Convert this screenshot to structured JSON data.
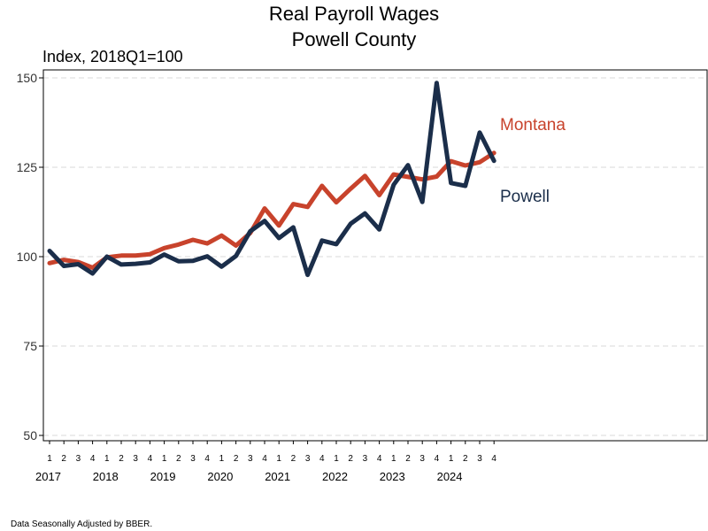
{
  "chart_data": {
    "type": "line",
    "title": [
      "Real Payroll Wages",
      "Powell County"
    ],
    "ylabel": "Index, 2018Q1=100",
    "ylim": [
      50,
      150
    ],
    "yticks": [
      50,
      75,
      100,
      125,
      150
    ],
    "grid": "horizontal-dashed",
    "quarters": [
      "1",
      "2",
      "3",
      "4",
      "1",
      "2",
      "3",
      "4",
      "1",
      "2",
      "3",
      "4",
      "1",
      "2",
      "3",
      "4",
      "1",
      "2",
      "3",
      "4",
      "1",
      "2",
      "3",
      "4",
      "1",
      "2",
      "3",
      "4",
      "1",
      "2",
      "3",
      "4"
    ],
    "years": [
      "2017",
      "2018",
      "2019",
      "2020",
      "2021",
      "2022",
      "2023",
      "2024"
    ],
    "x": [
      "2017Q1",
      "2017Q2",
      "2017Q3",
      "2017Q4",
      "2018Q1",
      "2018Q2",
      "2018Q3",
      "2018Q4",
      "2019Q1",
      "2019Q2",
      "2019Q3",
      "2019Q4",
      "2020Q1",
      "2020Q2",
      "2020Q3",
      "2020Q4",
      "2021Q1",
      "2021Q2",
      "2021Q3",
      "2021Q4",
      "2022Q1",
      "2022Q2",
      "2022Q3",
      "2022Q4",
      "2023Q1",
      "2023Q2",
      "2023Q3",
      "2023Q4",
      "2024Q1",
      "2024Q2",
      "2024Q3",
      "2024Q4"
    ],
    "series": [
      {
        "name": "Montana",
        "color": "#c8432c",
        "values": [
          98.2,
          99.1,
          98.5,
          96.9,
          99.8,
          100.3,
          100.3,
          100.7,
          102.4,
          103.4,
          104.7,
          103.7,
          105.9,
          103.1,
          106.6,
          113.5,
          108.7,
          114.7,
          113.9,
          119.8,
          115.2,
          119.0,
          122.6,
          117.2,
          123.0,
          122.3,
          121.6,
          122.4,
          126.7,
          125.5,
          126.4,
          129.0
        ]
      },
      {
        "name": "Powell",
        "color": "#1b2e4a",
        "values": [
          101.6,
          97.4,
          97.9,
          95.3,
          100.0,
          97.8,
          98.0,
          98.4,
          100.6,
          98.7,
          98.8,
          100.1,
          97.2,
          100.2,
          107.1,
          110.0,
          105.2,
          108.2,
          94.9,
          104.5,
          103.5,
          109.2,
          112.1,
          107.6,
          120.1,
          125.6,
          115.3,
          148.6,
          120.6,
          119.8,
          134.7,
          126.8
        ]
      }
    ]
  },
  "footnote": "Data Seasonally Adjusted by BBER."
}
